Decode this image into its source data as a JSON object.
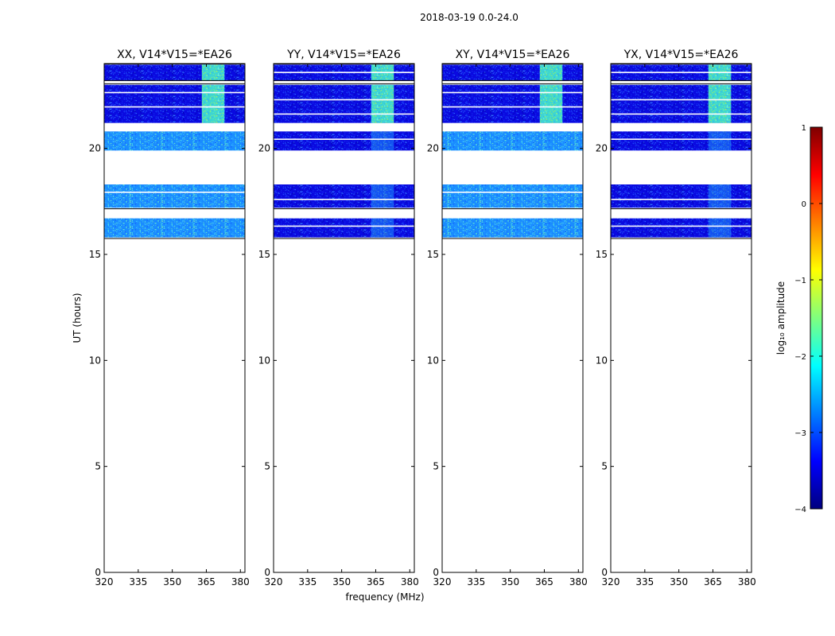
{
  "figure": {
    "suptitle": "2018-03-19 0.0-24.0"
  },
  "chart_data": {
    "type": "heatmap",
    "x_label": "frequency (MHz)",
    "y_label": "UT (hours)",
    "xlim": [
      320,
      382
    ],
    "ylim": [
      0,
      24
    ],
    "x_ticks": [
      320,
      335,
      350,
      365,
      380
    ],
    "y_ticks": [
      0,
      5,
      10,
      15,
      20
    ],
    "panels": [
      {
        "title": "XX, V14*V15=*EA26",
        "style": "xx"
      },
      {
        "title": "YY, V14*V15=*EA26",
        "style": "yy"
      },
      {
        "title": "XY, V14*V15=*EA26",
        "style": "xy"
      },
      {
        "title": "YX, V14*V15=*EA26",
        "style": "yx"
      }
    ],
    "data_blocks": [
      {
        "t_start": 15.8,
        "t_end": 16.7,
        "cross_bright": true
      },
      {
        "t_start": 17.2,
        "t_end": 18.3,
        "cross_bright": true
      },
      {
        "t_start": 19.9,
        "t_end": 20.8,
        "cross_bright": true
      },
      {
        "t_start": 21.2,
        "t_end": 23.0,
        "cross_bright": false
      },
      {
        "t_start": 23.2,
        "t_end": 23.95,
        "cross_bright": false
      }
    ],
    "rfi_band_mhz": [
      363,
      373
    ],
    "colorbar": {
      "label": "log₁₀ amplitude",
      "min": -4,
      "max": 1,
      "ticks": [
        -4,
        -3,
        -2,
        -1,
        0,
        1
      ],
      "colormap": [
        "#00007f",
        "#0000ff",
        "#007fff",
        "#00ffff",
        "#7fff7f",
        "#ffff00",
        "#ff7f00",
        "#ff0000",
        "#7f0000"
      ]
    }
  }
}
